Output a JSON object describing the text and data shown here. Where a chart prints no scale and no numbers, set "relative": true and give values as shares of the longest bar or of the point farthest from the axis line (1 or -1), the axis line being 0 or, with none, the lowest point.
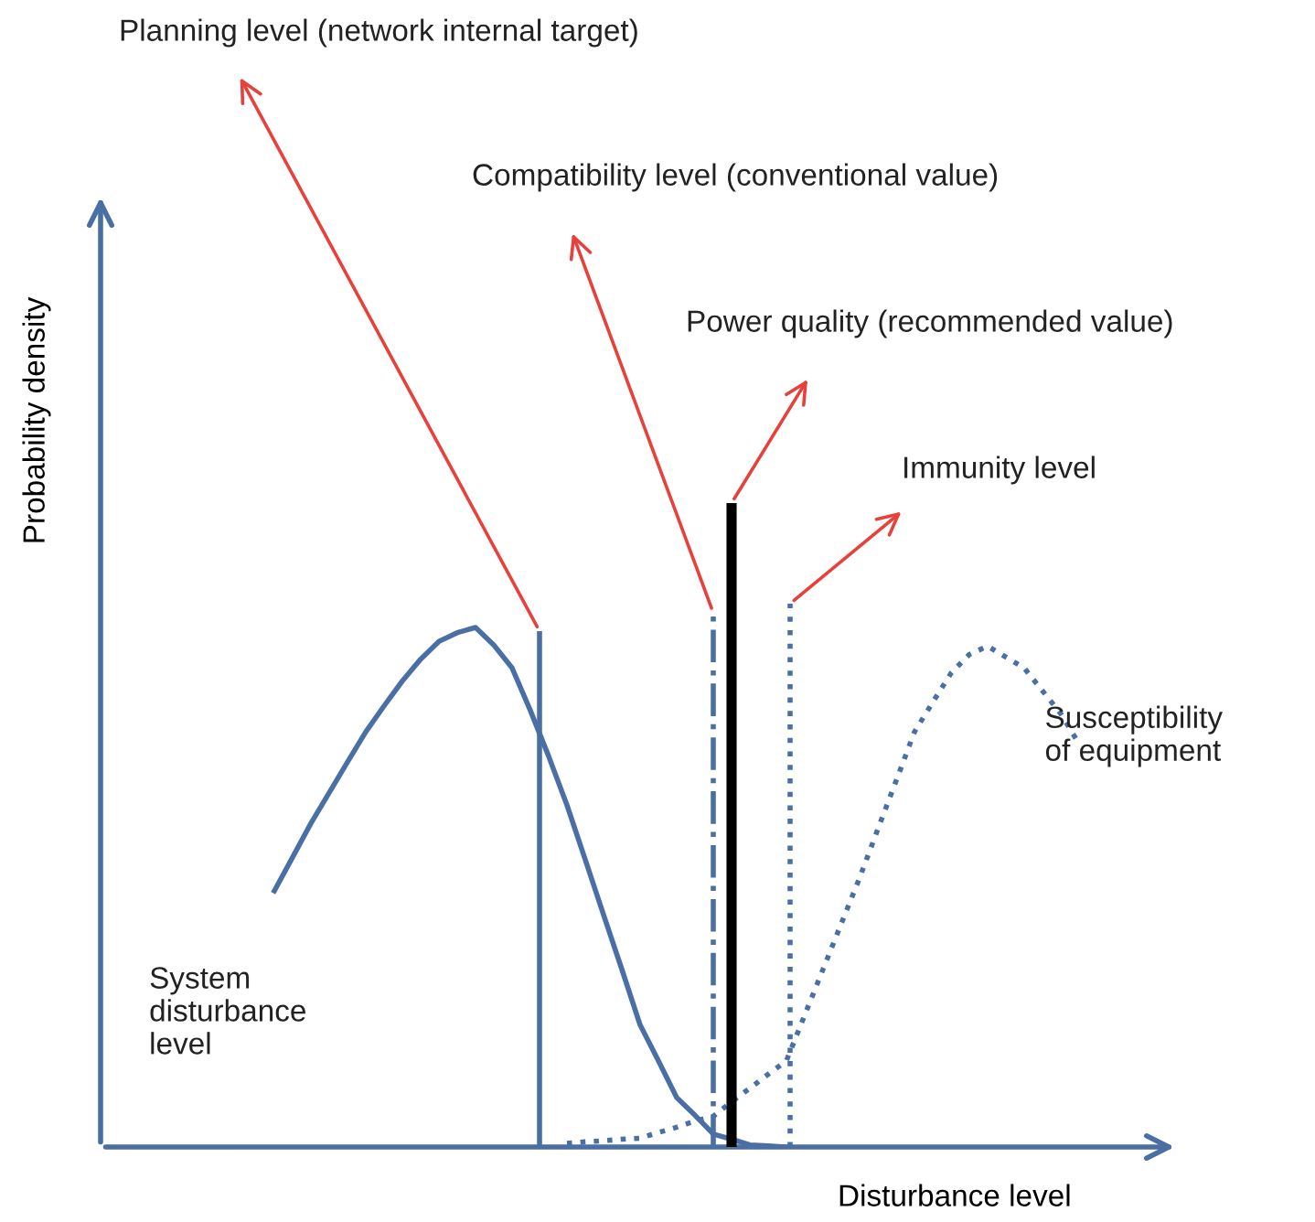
{
  "chart_data": {
    "type": "line",
    "relative": true,
    "xlabel": "Disturbance level",
    "ylabel": "Probability density",
    "legend": false,
    "marker": "none",
    "categories": [
      null,
      null,
      null,
      null,
      null,
      null,
      null,
      null,
      null,
      null,
      null,
      null,
      null,
      null,
      null,
      null,
      null,
      null,
      null,
      null,
      null,
      null,
      null,
      null,
      null,
      null,
      null,
      null,
      null,
      null,
      null,
      null,
      null,
      null,
      null,
      null,
      null,
      null,
      null,
      null,
      null,
      null,
      null,
      null,
      null,
      null,
      null,
      null,
      null,
      null,
      null,
      null,
      null,
      null,
      null,
      null,
      null,
      null,
      null
    ],
    "series": [
      {
        "name": "System\ndisturbance\nlevel",
        "color": "#4a6fa5",
        "line_style": "solid",
        "values": [
          null,
          null,
          null,
          null,
          null,
          null,
          null,
          null,
          null,
          0.493,
          0.558,
          0.623,
          0.682,
          0.741,
          0.799,
          0.849,
          0.897,
          0.939,
          0.973,
          0.99,
          1.0,
          0.966,
          0.922,
          0.84,
          0.752,
          0.658,
          0.553,
          0.447,
          0.342,
          0.235,
          0.166,
          0.095,
          0.061,
          0.025,
          0.015,
          0.004,
          0.002,
          0,
          null,
          null,
          null,
          null,
          null,
          null,
          null,
          null,
          null,
          null,
          null,
          null,
          null,
          null,
          null,
          null,
          null,
          null,
          null,
          null,
          null
        ]
      },
      {
        "name": "Susceptibility\nof equipment",
        "color": "#4a6fa5",
        "line_style": "dotted",
        "values": [
          null,
          null,
          null,
          null,
          null,
          null,
          null,
          null,
          null,
          null,
          null,
          null,
          null,
          null,
          null,
          null,
          null,
          null,
          null,
          null,
          null,
          null,
          null,
          null,
          null,
          0.007,
          0.01,
          0.012,
          0.015,
          0.017,
          0.028,
          0.038,
          0.05,
          0.059,
          0.087,
          0.113,
          0.14,
          0.166,
          0.254,
          0.342,
          0.43,
          0.518,
          0.612,
          0.705,
          0.799,
          0.856,
          0.912,
          0.948,
          0.964,
          0.943,
          0.922,
          0.878,
          0.834,
          0.776,
          null,
          null,
          null,
          null,
          null
        ]
      }
    ],
    "annotations": [
      "Planning level (network internal target)",
      "Compatibility level (conventional value)",
      "Power quality (recommended value)",
      "Immunity level"
    ]
  }
}
